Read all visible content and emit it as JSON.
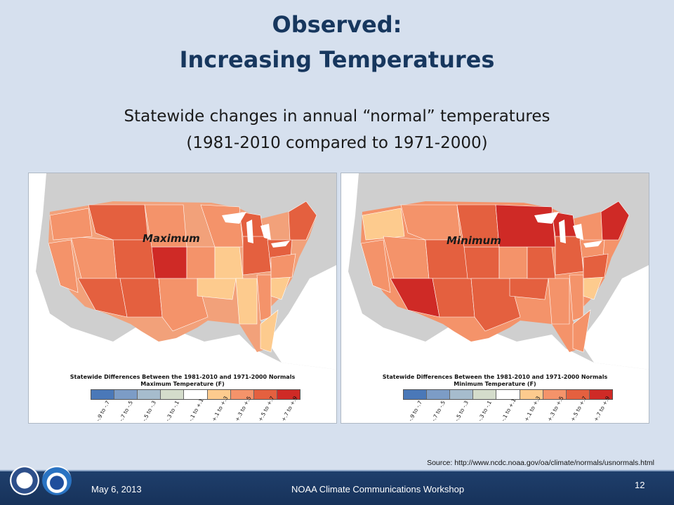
{
  "slide": {
    "title_line1": "Observed:",
    "title_line2": "Increasing Temperatures",
    "subtitle_line1": "Statewide changes in annual “normal” temperatures",
    "subtitle_line2": "(1981-2010 compared to 1971-2000)"
  },
  "maps": [
    {
      "label": "Maximum",
      "legend_title_line1": "Statewide Differences Between the 1981-2010 and 1971-2000 Normals",
      "legend_title_line2": "Maximum Temperature (F)"
    },
    {
      "label": "Minimum",
      "legend_title_line1": "Statewide Differences Between the 1981-2010 and 1971-2000 Normals",
      "legend_title_line2": "Minimum Temperature (F)"
    }
  ],
  "legend": {
    "bins": [
      "-.9 to -.7",
      "-.7 to -.5",
      "-.5 to -.3",
      "-.3 to -.1",
      "-.1 to +.1",
      "+.1 to +.3",
      "+.3 to +.5",
      "+.5 to +.7",
      "+.7 to +.9"
    ],
    "colors": [
      "#4a78b8",
      "#7c9cc6",
      "#a6bccd",
      "#d4dccb",
      "#ffffff",
      "#fdcb8e",
      "#f4936a",
      "#e4603f",
      "#cf2a26"
    ]
  },
  "source_text": "Source: http://www.ncdc.noaa.gov/oa/climate/normals/usnormals.html",
  "footer": {
    "date": "May 6, 2013",
    "event": "NOAA Climate Communications Workshop",
    "page": "12"
  },
  "logos": [
    "commerce-seal-icon",
    "noaa-logo-icon"
  ]
}
